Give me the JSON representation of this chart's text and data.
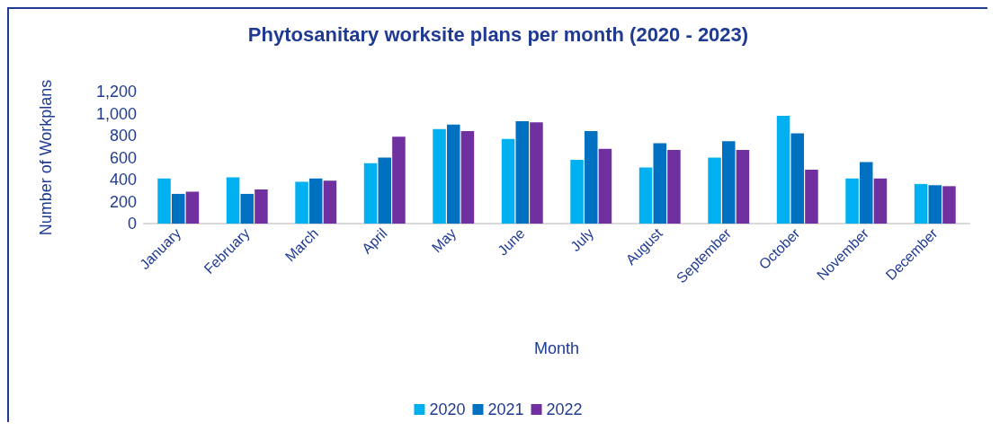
{
  "chart_data": {
    "type": "bar",
    "title": "Phytosanitary worksite plans per month (2020 - 2023)",
    "xlabel": "Month",
    "ylabel": "Number of Workplans",
    "categories": [
      "January",
      "February",
      "March",
      "April",
      "May",
      "June",
      "July",
      "August",
      "September",
      "October",
      "November",
      "December"
    ],
    "series": [
      {
        "name": "2020",
        "color": "#00b0f0",
        "values": [
          410,
          420,
          380,
          550,
          860,
          770,
          580,
          510,
          600,
          980,
          410,
          360
        ]
      },
      {
        "name": "2021",
        "color": "#0070c0",
        "values": [
          270,
          270,
          410,
          600,
          900,
          930,
          840,
          730,
          750,
          820,
          560,
          350
        ]
      },
      {
        "name": "2022",
        "color": "#7030a0",
        "values": [
          290,
          310,
          390,
          790,
          840,
          920,
          680,
          670,
          670,
          490,
          410,
          340
        ]
      }
    ],
    "ylim": [
      0,
      1200
    ],
    "yticks": [
      0,
      200,
      400,
      600,
      800,
      {
        "value": 1000,
        "label": "1,000"
      },
      {
        "value": 1200,
        "label": "1,200"
      }
    ],
    "grid": false,
    "legend": "bottom"
  }
}
